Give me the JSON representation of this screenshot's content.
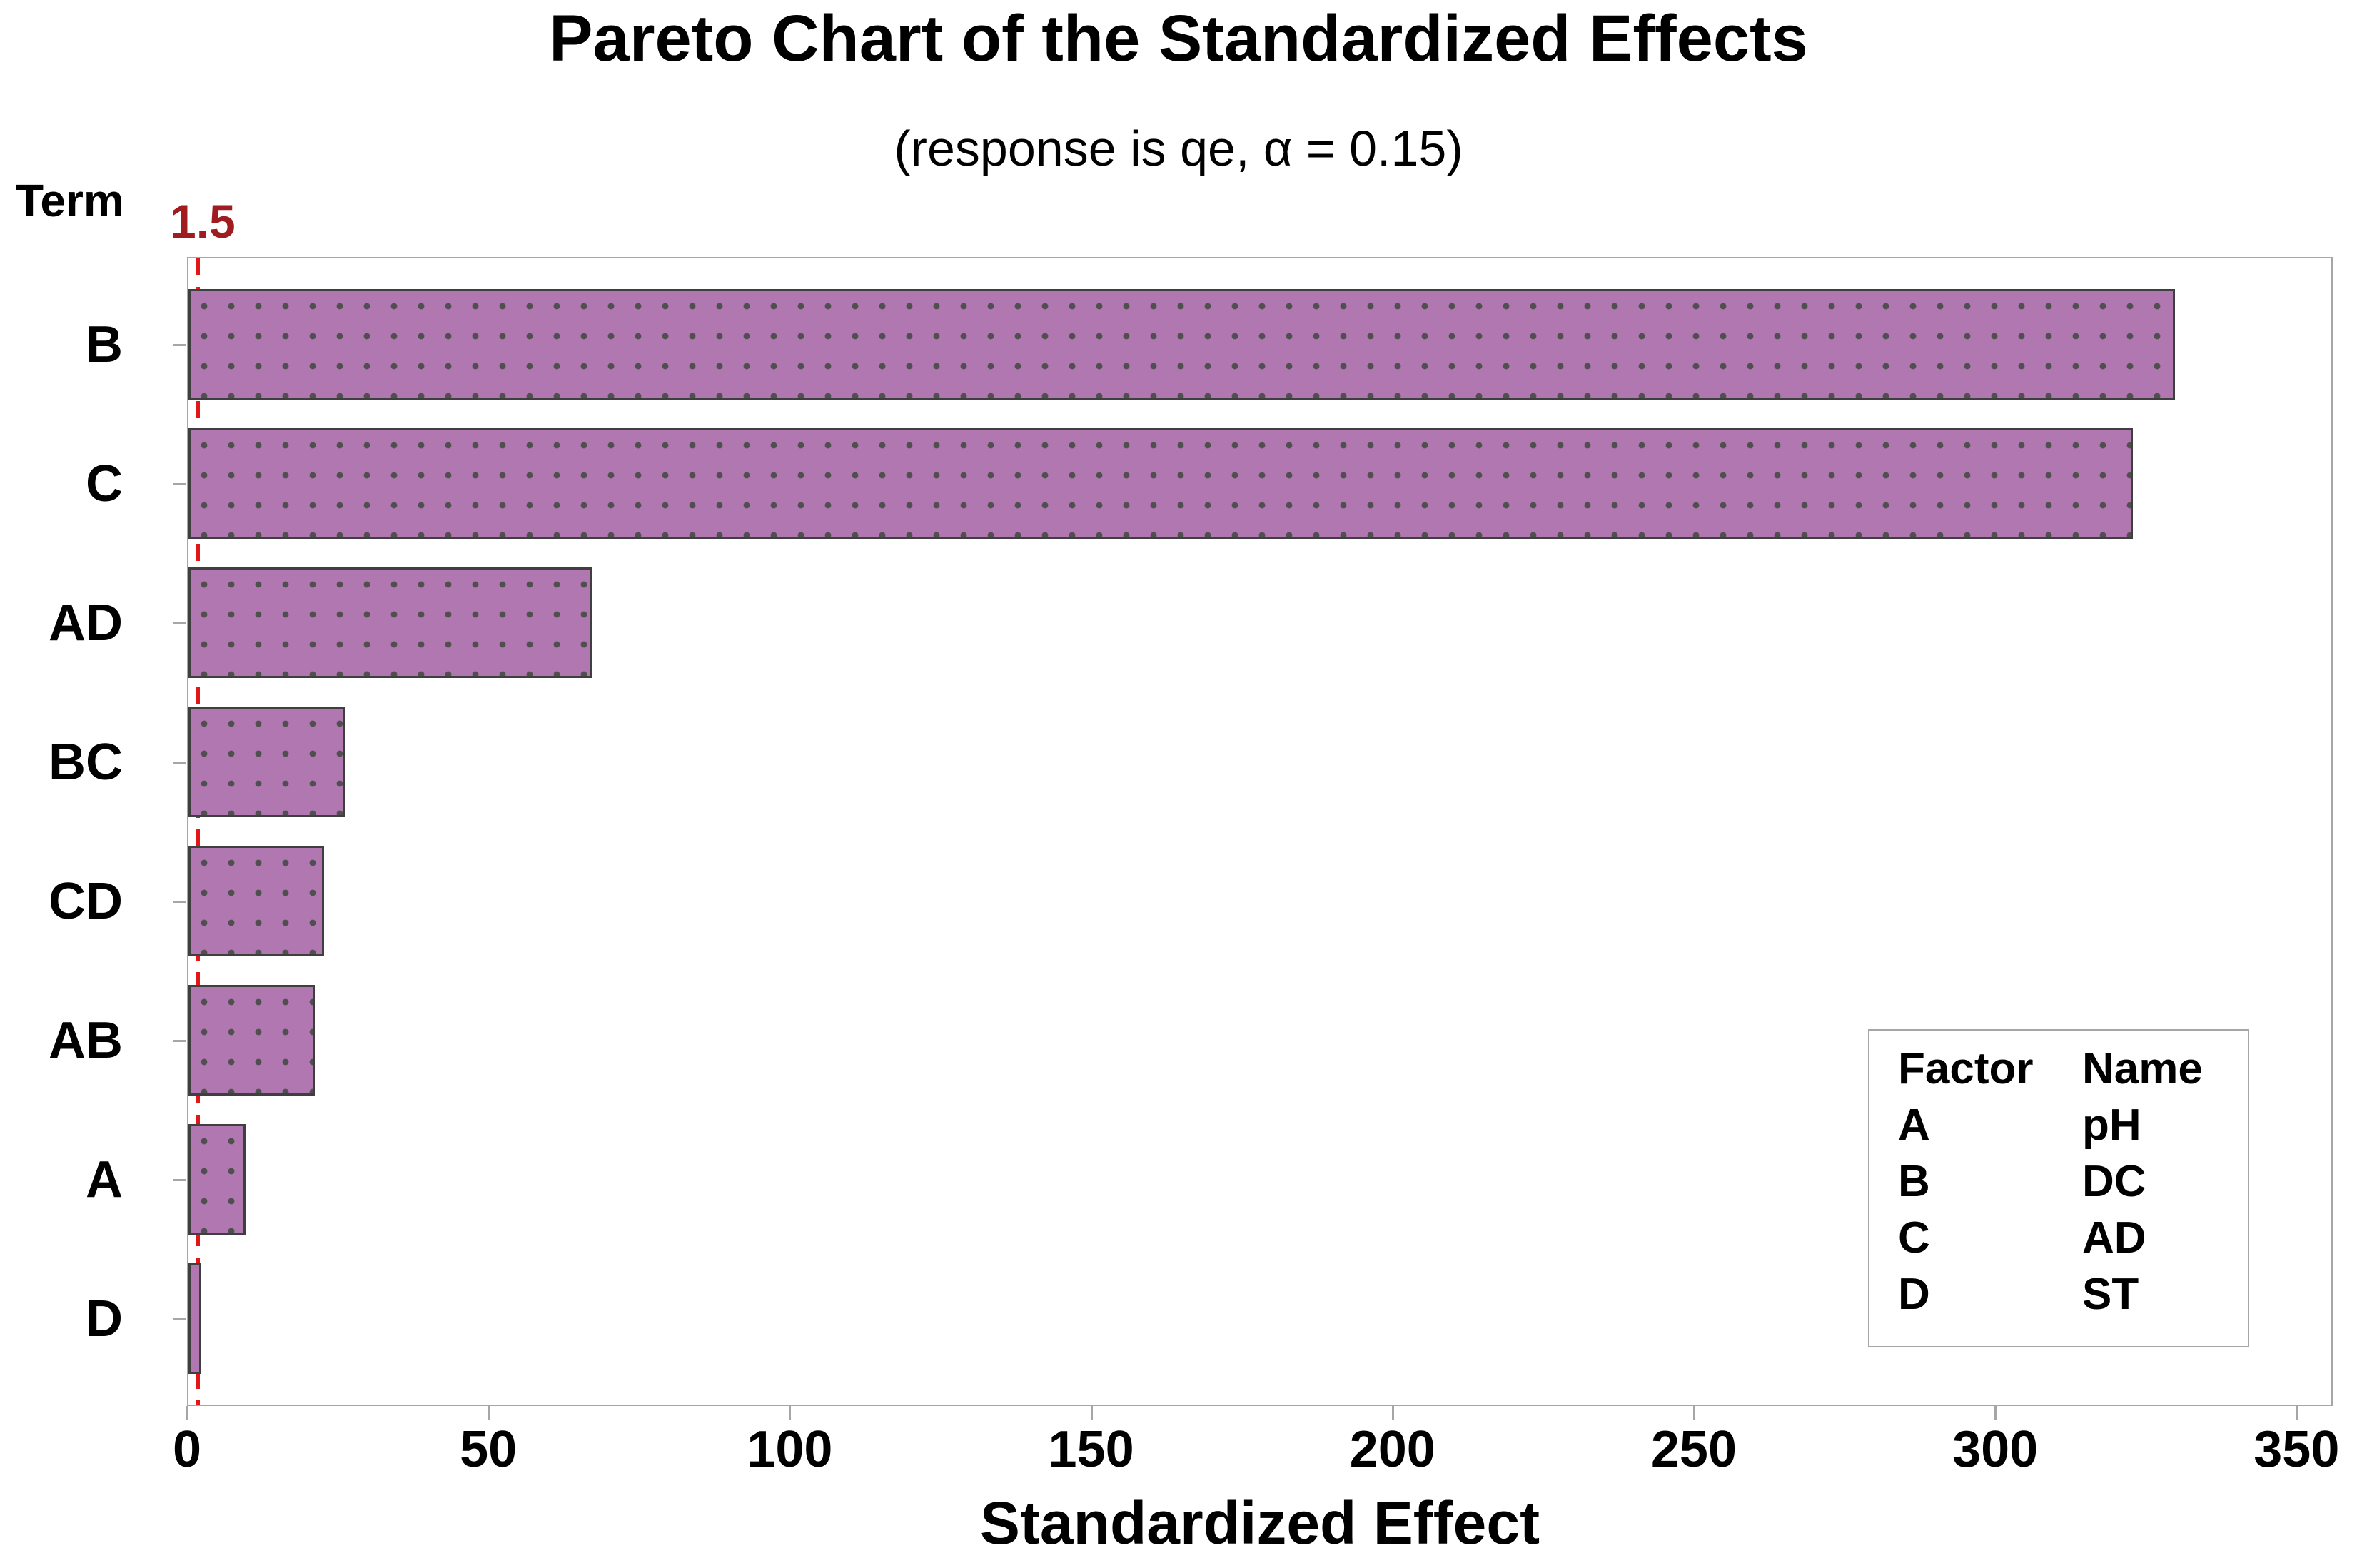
{
  "chart_data": {
    "type": "bar",
    "orientation": "horizontal",
    "title": "Pareto Chart of the Standardized Effects",
    "subtitle": "(response is qe, α = 0.15)",
    "xlabel": "Standardized Effect",
    "ylabel": "Term",
    "categories": [
      "B",
      "C",
      "AD",
      "BC",
      "CD",
      "AB",
      "A",
      "D"
    ],
    "values": [
      330,
      323,
      67,
      26,
      22.5,
      21,
      9.5,
      2.1
    ],
    "xlim": [
      0,
      356
    ],
    "xticks": [
      0,
      50,
      100,
      150,
      200,
      250,
      300,
      350
    ],
    "grid": false,
    "legend_position": "bottom-right",
    "reference_line": {
      "value": 1.5,
      "label": "1.5"
    },
    "legend": {
      "headers": [
        "Factor",
        "Name"
      ],
      "rows": [
        [
          "A",
          "pH"
        ],
        [
          "B",
          "DC"
        ],
        [
          "C",
          "AD"
        ],
        [
          "D",
          "ST"
        ]
      ]
    },
    "colors": {
      "bar_fill": "#b077b0",
      "bar_dot": "#4f4f4f",
      "bar_border": "#3f3f3f",
      "reference_line": "#e11616",
      "reference_label": "#9f1d20",
      "axis": "#a6a6a6",
      "text": "#000000"
    }
  }
}
